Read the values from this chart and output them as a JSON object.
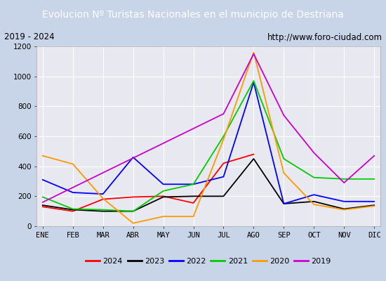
{
  "title": "Evolucion Nº Turistas Nacionales en el municipio de Destriana",
  "subtitle_left": "2019 - 2024",
  "subtitle_right": "http://www.foro-ciudad.com",
  "months": [
    "ENE",
    "FEB",
    "MAR",
    "ABR",
    "MAY",
    "JUN",
    "JUL",
    "AGO",
    "SEP",
    "OCT",
    "NOV",
    "DIC"
  ],
  "ylim": [
    0,
    1200
  ],
  "yticks": [
    0,
    200,
    400,
    600,
    800,
    1000,
    1200
  ],
  "series": {
    "2024": [
      130,
      100,
      180,
      195,
      200,
      155,
      420,
      480,
      null,
      null,
      null,
      null
    ],
    "2023": [
      140,
      110,
      100,
      100,
      195,
      200,
      200,
      450,
      150,
      165,
      115,
      140
    ],
    "2022": [
      310,
      225,
      215,
      460,
      280,
      280,
      330,
      960,
      150,
      210,
      165,
      165
    ],
    "2021": [
      195,
      115,
      110,
      100,
      235,
      280,
      600,
      970,
      450,
      325,
      315,
      315
    ],
    "2020": [
      470,
      415,
      185,
      20,
      65,
      65,
      580,
      1160,
      355,
      145,
      110,
      135
    ],
    "2019": [
      160,
      null,
      null,
      null,
      null,
      null,
      750,
      1150,
      740,
      490,
      290,
      470
    ]
  },
  "colors": {
    "2024": "#ff0000",
    "2023": "#000000",
    "2022": "#0000ff",
    "2021": "#00cc00",
    "2020": "#ff9900",
    "2019": "#cc00cc"
  },
  "title_bg_color": "#4472c4",
  "title_text_color": "#ffffff",
  "title_fontsize": 10,
  "fig_bg_color": "#c8d4e8",
  "plot_bg_color": "#e8e8f0",
  "subtitle_bg": "#ffffff",
  "legend_bg": "#ffffff"
}
